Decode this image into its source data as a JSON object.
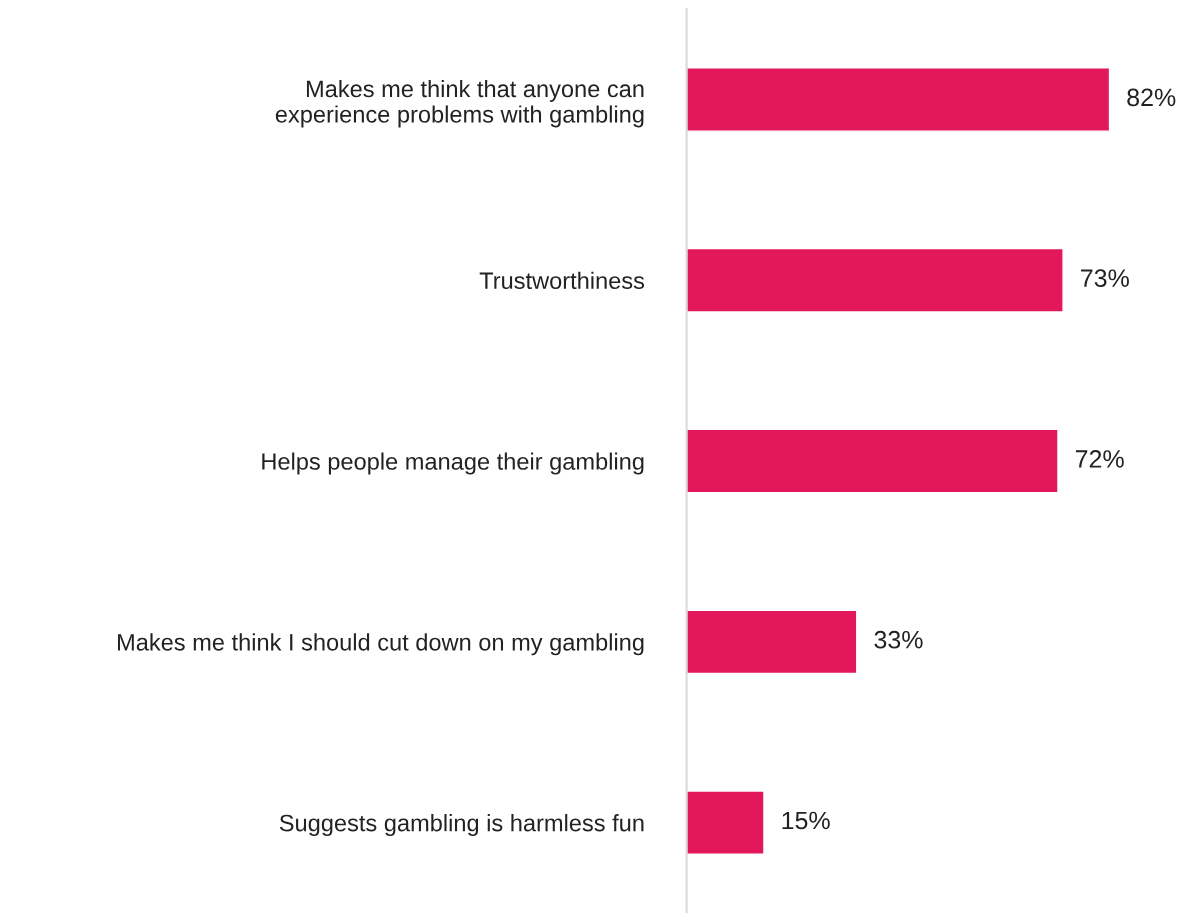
{
  "chart_data": {
    "type": "bar",
    "orientation": "horizontal",
    "categories": [
      "Makes me think that anyone can\nexperience problems with gambling",
      "Trustworthiness",
      "Helps people manage their gambling",
      "Makes me think I should cut down on my gambling",
      "Suggests gambling is harmless fun"
    ],
    "values": [
      82,
      73,
      72,
      33,
      15
    ],
    "value_labels": [
      "82%",
      "73%",
      "72%",
      "33%",
      "15%"
    ],
    "color": "#e3185a",
    "grid": false,
    "legend": false
  }
}
